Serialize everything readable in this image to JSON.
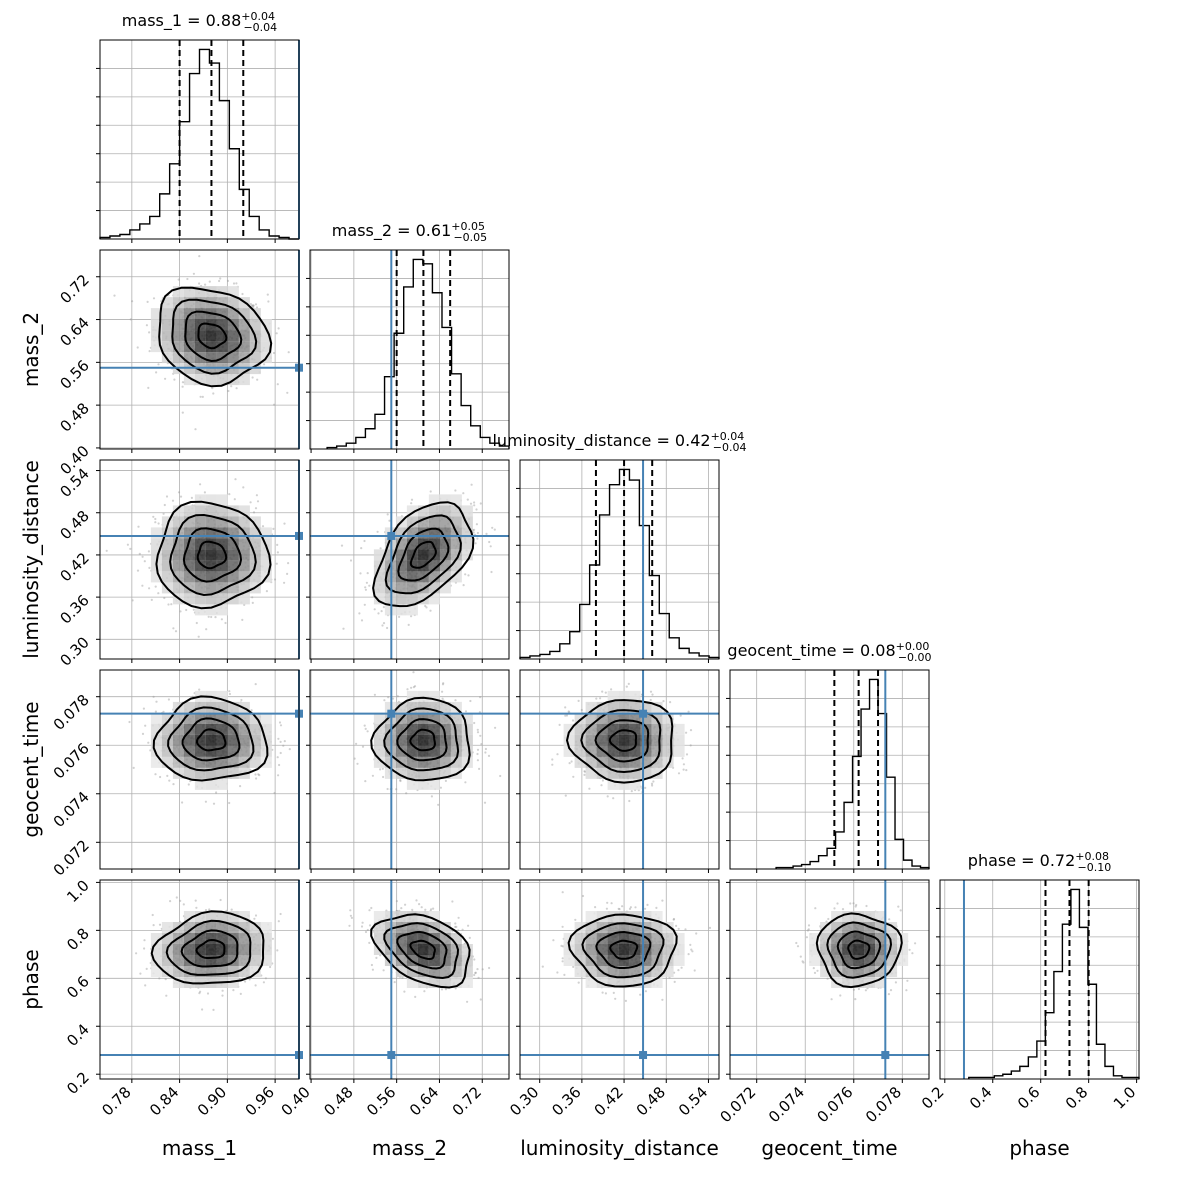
{
  "chart_data": {
    "type": "corner",
    "parameters": [
      {
        "name": "mass_1",
        "label": "mass_1",
        "range": [
          0.74,
          0.99
        ],
        "ticks": [
          "0.78",
          "0.84",
          "0.90",
          "0.96"
        ],
        "median": 0.88,
        "q_lower": 0.84,
        "q_upper": 0.92,
        "sigma": 0.035,
        "truth": 0.99
      },
      {
        "name": "mass_2",
        "label": "mass_2",
        "range": [
          0.398,
          0.77
        ],
        "ticks": [
          "0.40",
          "0.48",
          "0.56",
          "0.64",
          "0.72"
        ],
        "median": 0.61,
        "q_lower": 0.56,
        "q_upper": 0.66,
        "sigma": 0.045,
        "truth": 0.55
      },
      {
        "name": "luminosity_distance",
        "label": "luminosity_distance",
        "range": [
          0.272,
          0.555
        ],
        "ticks": [
          "0.30",
          "0.36",
          "0.42",
          "0.48",
          "0.54"
        ],
        "median": 0.42,
        "q_lower": 0.38,
        "q_upper": 0.46,
        "sigma": 0.037,
        "truth": 0.447
      },
      {
        "name": "geocent_time",
        "label": "geocent_time",
        "range": [
          0.0709,
          0.0791
        ],
        "ticks": [
          "0.072",
          "0.074",
          "0.076",
          "0.078"
        ],
        "median": 0.0762,
        "q_lower": 0.0752,
        "q_upper": 0.077,
        "sigma": 0.00085,
        "truth": 0.0773
      },
      {
        "name": "phase",
        "label": "phase",
        "range": [
          0.18,
          1.01
        ],
        "ticks": [
          "0.2",
          "0.4",
          "0.6",
          "0.8",
          "1.0"
        ],
        "median": 0.72,
        "q_lower": 0.62,
        "q_upper": 0.8,
        "sigma": 0.075,
        "truth": 0.28
      }
    ],
    "titles": [
      {
        "main": "mass_1 = 0.88",
        "sup": "+0.04",
        "sub": "−0.04"
      },
      {
        "main": "mass_2 = 0.61",
        "sup": "+0.05",
        "sub": "−0.05"
      },
      {
        "main": "luminosity_distance = 0.42",
        "sup": "+0.04",
        "sub": "−0.04"
      },
      {
        "main": "geocent_time = 0.08",
        "sup": "+0.00",
        "sub": "−0.00"
      },
      {
        "main": "phase = 0.72",
        "sup": "+0.08",
        "sub": "−0.10"
      }
    ],
    "histograms": [
      [
        1,
        2,
        3,
        6,
        10,
        15,
        30,
        50,
        78,
        110,
        126,
        117,
        92,
        60,
        33,
        15,
        6,
        2,
        1,
        0
      ],
      [
        1,
        2,
        4,
        8,
        14,
        24,
        50,
        80,
        112,
        131,
        128,
        108,
        84,
        52,
        30,
        16,
        8,
        4,
        2
      ],
      [
        1,
        2,
        3,
        5,
        10,
        18,
        36,
        62,
        95,
        115,
        125,
        118,
        88,
        55,
        30,
        14,
        7,
        4,
        2,
        1
      ],
      [
        1,
        1,
        2,
        3,
        5,
        9,
        14,
        25,
        45,
        76,
        108,
        128,
        105,
        62,
        20,
        6,
        2,
        1
      ],
      [
        1,
        1,
        1,
        2,
        3,
        5,
        8,
        14,
        24,
        42,
        68,
        98,
        120,
        96,
        60,
        22,
        8,
        2,
        1,
        1
      ]
    ],
    "truth_color": "#4682b4",
    "grid": true
  }
}
